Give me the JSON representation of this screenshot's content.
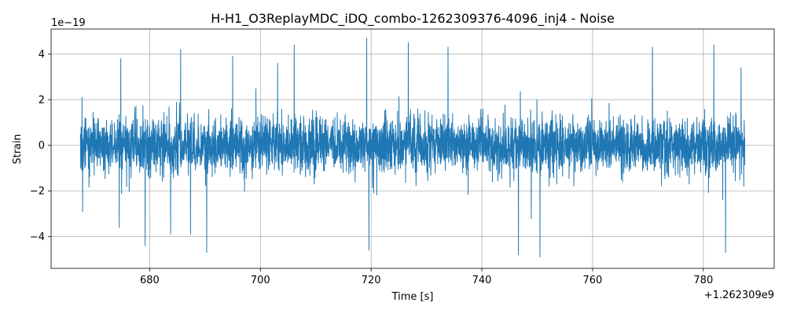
{
  "chart_data": {
    "type": "line",
    "title": "H-H1_O3ReplayMDC_iDQ_combo-1262309376-4096_inj4 - Noise",
    "xlabel": "Time [s]",
    "ylabel": "Strain",
    "x_offset_label": "+1.262309e9",
    "y_scale_label": "1e−19",
    "xlim": [
      662.2,
      792.8
    ],
    "ylim": [
      -5.4,
      5.1
    ],
    "x_ticks": [
      680,
      700,
      720,
      740,
      760,
      780
    ],
    "x_tick_labels": [
      "680",
      "700",
      "720",
      "740",
      "760",
      "780"
    ],
    "y_ticks": [
      -4,
      -2,
      0,
      2,
      4
    ],
    "y_tick_labels": [
      "−4",
      "−2",
      "0",
      "2",
      "4"
    ],
    "grid": true,
    "series": [
      {
        "color": "#1f77b4",
        "x_start": 667.5,
        "x_end": 787.5,
        "typical_range": [
          -2.2,
          2.2
        ],
        "peaks": [
          {
            "x": 667.8,
            "y": 2.1
          },
          {
            "x": 667.9,
            "y": -2.9
          },
          {
            "x": 674.8,
            "y": 3.8
          },
          {
            "x": 674.5,
            "y": -3.6
          },
          {
            "x": 679.2,
            "y": -4.4
          },
          {
            "x": 683.8,
            "y": -3.9
          },
          {
            "x": 685.6,
            "y": 4.2
          },
          {
            "x": 687.4,
            "y": -3.9
          },
          {
            "x": 690.3,
            "y": -4.7
          },
          {
            "x": 695.0,
            "y": 3.9
          },
          {
            "x": 703.1,
            "y": 3.6
          },
          {
            "x": 706.1,
            "y": 4.4
          },
          {
            "x": 719.2,
            "y": 4.7
          },
          {
            "x": 719.6,
            "y": -4.6
          },
          {
            "x": 726.7,
            "y": 4.5
          },
          {
            "x": 733.9,
            "y": 4.3
          },
          {
            "x": 746.6,
            "y": -4.8
          },
          {
            "x": 750.5,
            "y": -4.9
          },
          {
            "x": 770.8,
            "y": 4.3
          },
          {
            "x": 781.9,
            "y": 4.4
          },
          {
            "x": 784.0,
            "y": -4.7
          },
          {
            "x": 786.8,
            "y": 3.4
          },
          {
            "x": 787.3,
            "y": -1.8
          }
        ]
      }
    ]
  }
}
